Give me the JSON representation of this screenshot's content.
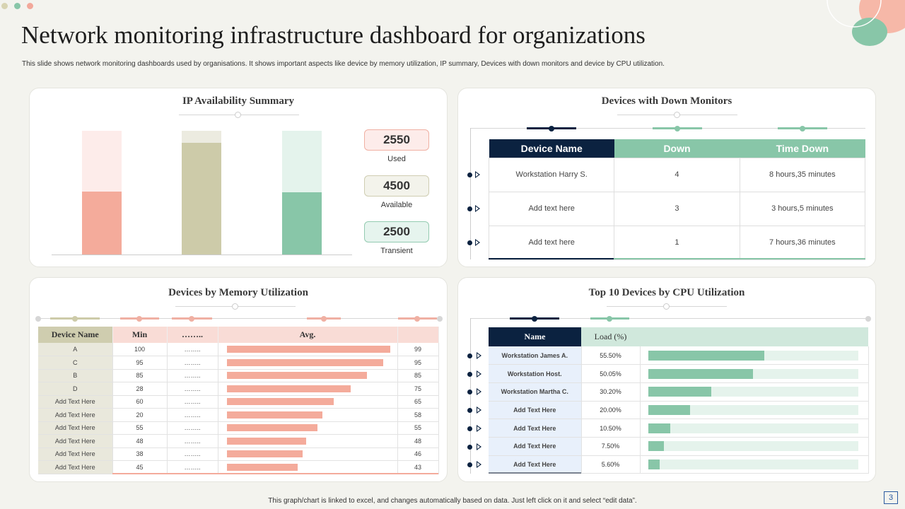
{
  "header": {
    "title": "Network monitoring infrastructure dashboard for organizations",
    "subtitle": "This slide shows network monitoring dashboards used by organisations. It shows important aspects like device by memory utilization,  IP  summary, Devices with down monitors and device by CPU  utilization."
  },
  "colors": {
    "pink": "#f4ab9b",
    "beige": "#cdcba9",
    "mint": "#88c6a8",
    "navy": "#0b2240"
  },
  "ip_summary": {
    "title": "IP Availability  Summary",
    "chart_data": {
      "type": "bar",
      "categories": [
        "Used",
        "Available",
        "Transient"
      ],
      "values": [
        2550,
        4500,
        2500
      ],
      "ylim": [
        0,
        5000
      ],
      "colors": [
        "#f4ab9b",
        "#cdcba9",
        "#88c6a8"
      ]
    },
    "stats": [
      {
        "value": "2550",
        "label": "Used"
      },
      {
        "value": "4500",
        "label": "Available"
      },
      {
        "value": "2500",
        "label": "Transient"
      }
    ]
  },
  "down_monitors": {
    "title": "Devices with Down Monitors",
    "columns": [
      "Device Name",
      "Down",
      "Time Down"
    ],
    "rows": [
      [
        "Workstation Harry S.",
        "4",
        "8 hours,35 minutes"
      ],
      [
        "Add text here",
        "3",
        "3 hours,5 minutes"
      ],
      [
        "Add text here",
        "1",
        "7 hours,36 minutes"
      ]
    ]
  },
  "memory": {
    "title": "Devices by Memory Utilization",
    "columns": [
      "Device Name",
      "Min",
      "……..",
      "Avg.",
      ""
    ],
    "rows": [
      {
        "name": "A",
        "min": "100",
        "dots": "……..",
        "avg": 99
      },
      {
        "name": "C",
        "min": "95",
        "dots": "……..",
        "avg": 95
      },
      {
        "name": "B",
        "min": "85",
        "dots": "……..",
        "avg": 85
      },
      {
        "name": "D",
        "min": "28",
        "dots": "……..",
        "avg": 75
      },
      {
        "name": "Add Text Here",
        "min": "60",
        "dots": "……..",
        "avg": 65
      },
      {
        "name": "Add Text Here",
        "min": "20",
        "dots": "……..",
        "avg": 58
      },
      {
        "name": "Add Text Here",
        "min": "55",
        "dots": "……..",
        "avg": 55
      },
      {
        "name": "Add Text Here",
        "min": "48",
        "dots": "……..",
        "avg": 48
      },
      {
        "name": "Add Text Here",
        "min": "38",
        "dots": "……..",
        "avg": 46
      },
      {
        "name": "Add Text Here",
        "min": "45",
        "dots": "……..",
        "avg": 43
      }
    ]
  },
  "cpu": {
    "title": "Top 10 Devices by CPU Utilization",
    "columns": [
      "Name",
      "Load (%)",
      ""
    ],
    "rows": [
      {
        "name": "Workstation James A.",
        "load": "55.50%",
        "value": 55.5
      },
      {
        "name": "Workstation Host.",
        "load": "50.05%",
        "value": 50.05
      },
      {
        "name": "Workstation Martha C.",
        "load": "30.20%",
        "value": 30.2
      },
      {
        "name": "Add Text Here",
        "load": "20.00%",
        "value": 20
      },
      {
        "name": "Add Text Here",
        "load": "10.50%",
        "value": 10.5
      },
      {
        "name": "Add Text Here",
        "load": "7.50%",
        "value": 7.5
      },
      {
        "name": "Add Text Here",
        "load": "5.60%",
        "value": 5.6
      }
    ]
  },
  "footer": {
    "note": "This graph/chart is linked to excel, and changes automatically based on data. Just left click on it and select “edit data”.",
    "page_number": "3"
  }
}
